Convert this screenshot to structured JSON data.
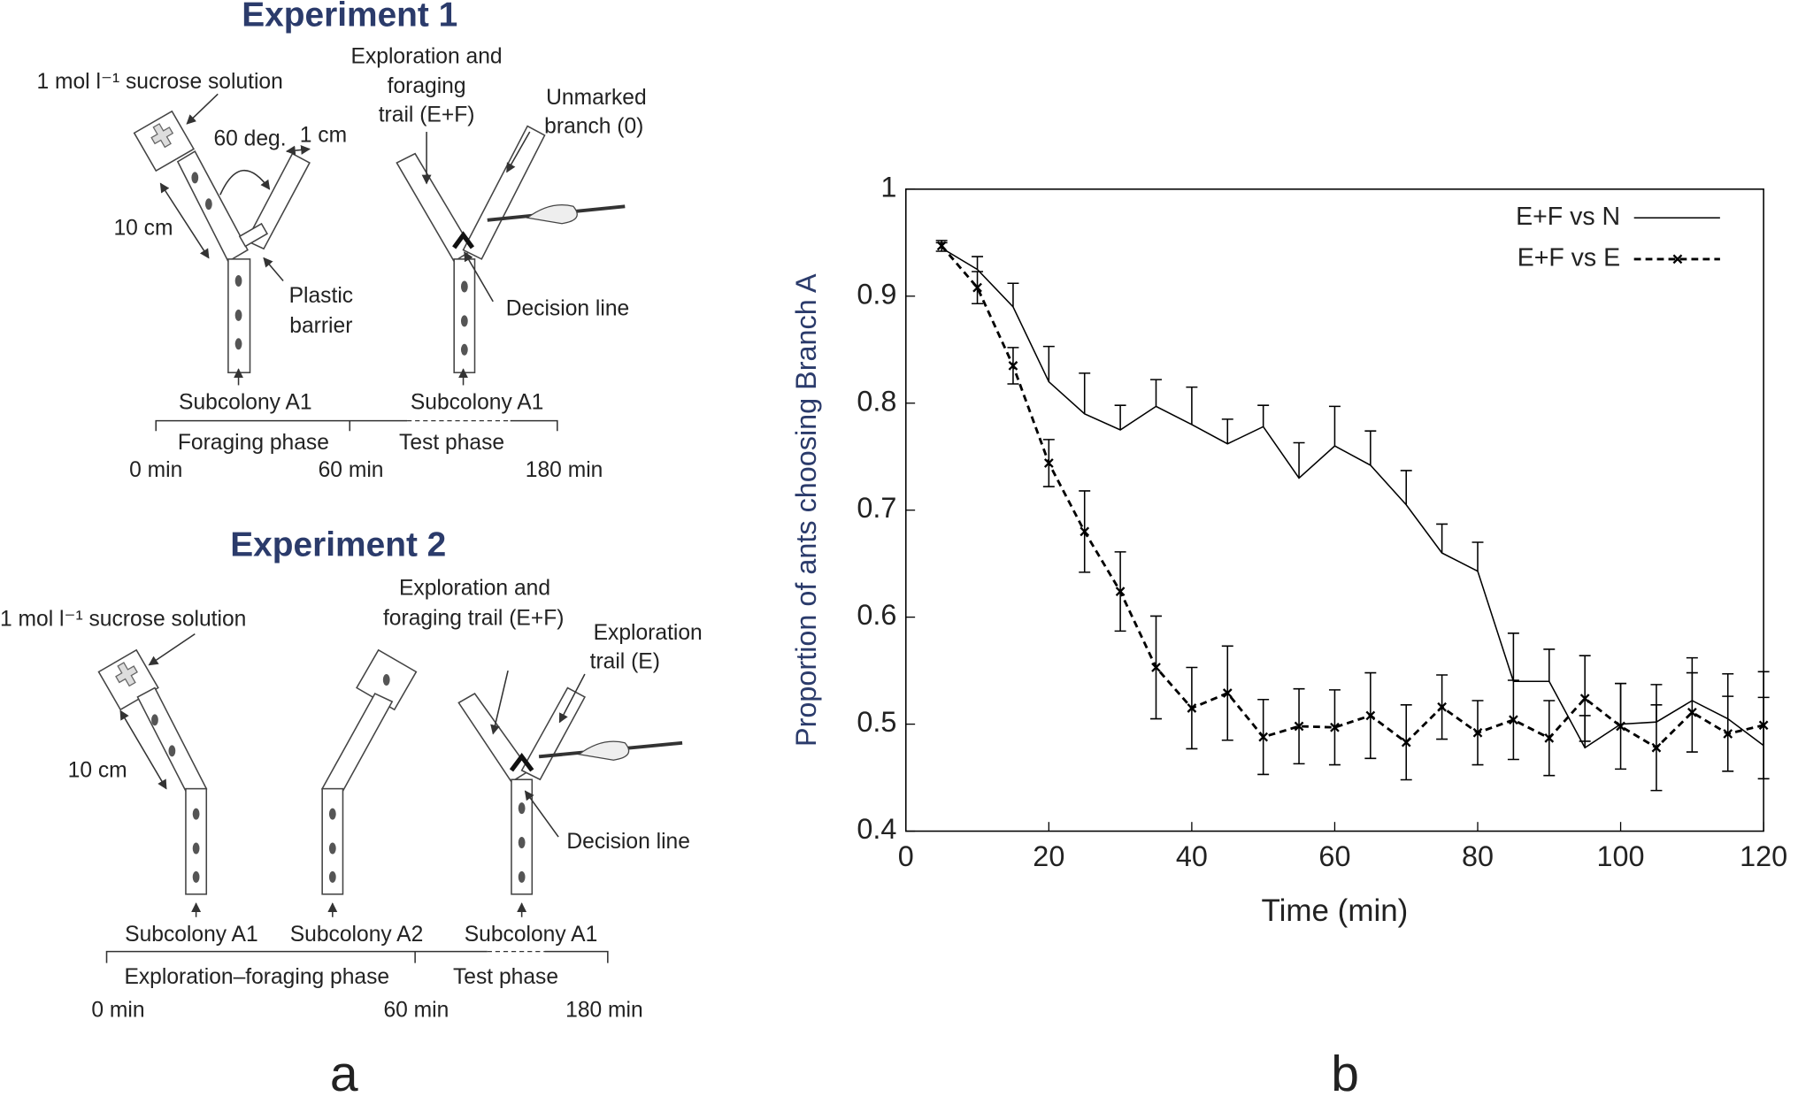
{
  "panel_a": {
    "label": "a",
    "experiment_1": {
      "title": "Experiment 1",
      "sucrose": "1 mol l⁻¹ sucrose solution",
      "angle": "60 deg.",
      "width": "1 cm",
      "length": "10 cm",
      "barrier": [
        "Plastic",
        "barrier"
      ],
      "trail": [
        "Exploration and",
        "foraging",
        "trail (E+F)"
      ],
      "unmarked": [
        "Unmarked",
        "branch (0)"
      ],
      "decision": "Decision line",
      "subcolonies": [
        "Subcolony A1",
        "Subcolony A1"
      ],
      "phases": [
        "Foraging phase",
        "Test phase"
      ],
      "times": [
        "0 min",
        "60 min",
        "180 min"
      ]
    },
    "experiment_2": {
      "title": "Experiment 2",
      "sucrose": "1 mol l⁻¹ sucrose solution",
      "length": "10 cm",
      "trail": [
        "Exploration and",
        "foraging trail (E+F)"
      ],
      "exploration": [
        "Exploration",
        "trail (E)"
      ],
      "decision": "Decision line",
      "subcolonies": [
        "Subcolony A1",
        "Subcolony A2",
        "Subcolony A1"
      ],
      "phases": [
        "Exploration–foraging phase",
        "Test phase"
      ],
      "times": [
        "0 min",
        "60 min",
        "180 min"
      ]
    }
  },
  "panel_b_label": "b",
  "chart_data": {
    "type": "line",
    "xlabel": "Time (min)",
    "ylabel": "Proportion of ants choosing Branch A",
    "x": [
      5,
      10,
      15,
      20,
      25,
      30,
      35,
      40,
      45,
      50,
      55,
      60,
      65,
      70,
      75,
      80,
      85,
      90,
      95,
      100,
      105,
      110,
      115,
      120
    ],
    "xlim": [
      0,
      120
    ],
    "xticks": [
      0,
      20,
      40,
      60,
      80,
      100,
      120
    ],
    "ylim": [
      0.4,
      1
    ],
    "yticks": [
      0.4,
      0.5,
      0.6,
      0.7,
      0.8,
      0.9,
      1
    ],
    "legend": "upper right",
    "series": [
      {
        "name": "E+F vs N",
        "color": "#000000",
        "line_style": "solid",
        "marker": "none",
        "error_style": "upper",
        "values": [
          0.945,
          0.925,
          0.89,
          0.82,
          0.79,
          0.775,
          0.797,
          0.78,
          0.762,
          0.778,
          0.73,
          0.76,
          0.742,
          0.705,
          0.66,
          0.643,
          0.54,
          0.54,
          0.478,
          0.5,
          0.502,
          0.522,
          0.505,
          0.48
        ],
        "errors": [
          0.005,
          0.012,
          0.022,
          0.033,
          0.038,
          0.023,
          0.025,
          0.035,
          0.023,
          0.02,
          0.033,
          0.037,
          0.032,
          0.032,
          0.027,
          0.027,
          0.045,
          0.03,
          0.03,
          0.038,
          0.035,
          0.04,
          0.042,
          0.045
        ]
      },
      {
        "name": "E+F vs E",
        "color": "#000000",
        "line_style": "dashed",
        "marker": "x",
        "error_style": "both",
        "values": [
          0.947,
          0.908,
          0.835,
          0.744,
          0.68,
          0.624,
          0.553,
          0.515,
          0.529,
          0.488,
          0.498,
          0.497,
          0.508,
          0.483,
          0.516,
          0.492,
          0.504,
          0.487,
          0.524,
          0.498,
          0.478,
          0.511,
          0.491,
          0.499
        ],
        "errors": [
          0.005,
          0.015,
          0.017,
          0.022,
          0.038,
          0.037,
          0.048,
          0.038,
          0.044,
          0.035,
          0.035,
          0.035,
          0.04,
          0.035,
          0.03,
          0.03,
          0.037,
          0.035,
          0.04,
          0.04,
          0.04,
          0.037,
          0.035,
          0.05
        ]
      }
    ]
  }
}
